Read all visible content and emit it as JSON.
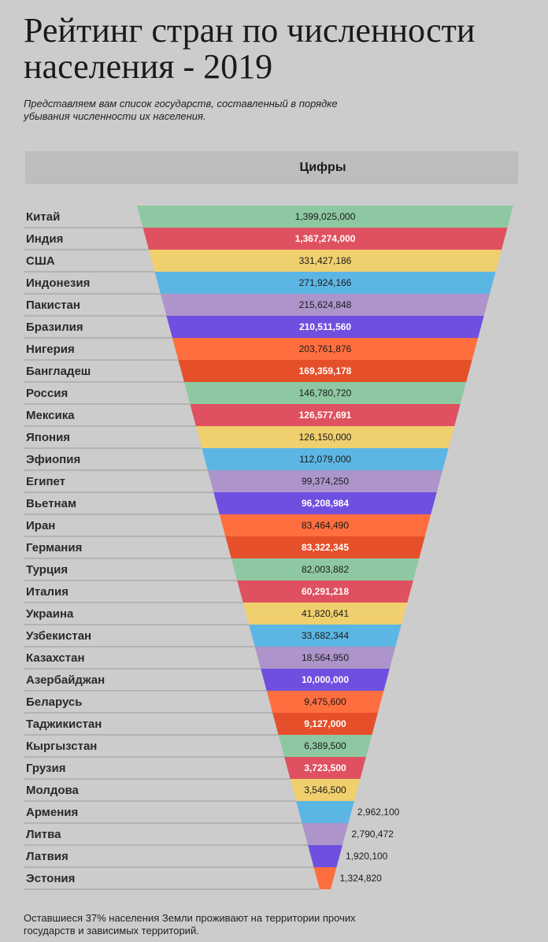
{
  "page": {
    "title": "Рейтинг стран по численности населения - 2019",
    "subtitle": "Представляем вам список государств, составленный в порядке убывания численности их населения.",
    "column_header": "Цифры",
    "footer": "Оставшиеся 37% населения Земли проживают на территории прочих государств и зависимых территорий."
  },
  "colors": [
    "#8ec8a2",
    "#df5160",
    "#f0cf6e",
    "#5cb6e4",
    "#ad95cb",
    "#6f4fe0",
    "#ff6e3f",
    "#e5502a"
  ],
  "chart_data": {
    "type": "bar",
    "title": "Рейтинг стран по численности населения - 2019",
    "categories": [
      "Китай",
      "Индия",
      "США",
      "Индонезия",
      "Пакистан",
      "Бразилия",
      "Нигерия",
      "Бангладеш",
      "Россия",
      "Мексика",
      "Япония",
      "Эфиопия",
      "Египет",
      "Вьетнам",
      "Иран",
      "Германия",
      "Турция",
      "Италия",
      "Украина",
      "Узбекистан",
      "Казахстан",
      "Азербайджан",
      "Беларусь",
      "Таджикистан",
      "Кыргызстан",
      "Грузия",
      "Молдова",
      "Армения",
      "Литва",
      "Латвия",
      "Эстония"
    ],
    "labels": [
      "1,399,025,000",
      "1,367,274,000",
      "331,427,186",
      "271,924,166",
      "215,624,848",
      "210,511,560",
      "203,761,876",
      "169,359,178",
      "146,780,720",
      "126,577,691",
      "126,150,000",
      "112,079,000",
      "99,374,250",
      "96,208,984",
      "83,464,490",
      "83,322,345",
      "82,003,882",
      "60,291,218",
      "41,820,641",
      "33,682,344",
      "18,564,950",
      "10,000,000",
      "9,475,600",
      "9,127,000",
      "6,389,500",
      "3,723,500",
      "3,546,500",
      "2,962,100",
      "2,790,472",
      "1,920,100",
      "1,324,820"
    ],
    "values": [
      1399025000,
      1367274000,
      331427186,
      271924166,
      215624848,
      210511560,
      203761876,
      169359178,
      146780720,
      126577691,
      126150000,
      112079000,
      99374250,
      96208984,
      83464490,
      83322345,
      82003882,
      60291218,
      41820641,
      33682344,
      18564950,
      10000000,
      9475600,
      9127000,
      6389500,
      3723500,
      3546500,
      2962100,
      2790472,
      1920100,
      1324820
    ],
    "column_header": "Цифры"
  }
}
